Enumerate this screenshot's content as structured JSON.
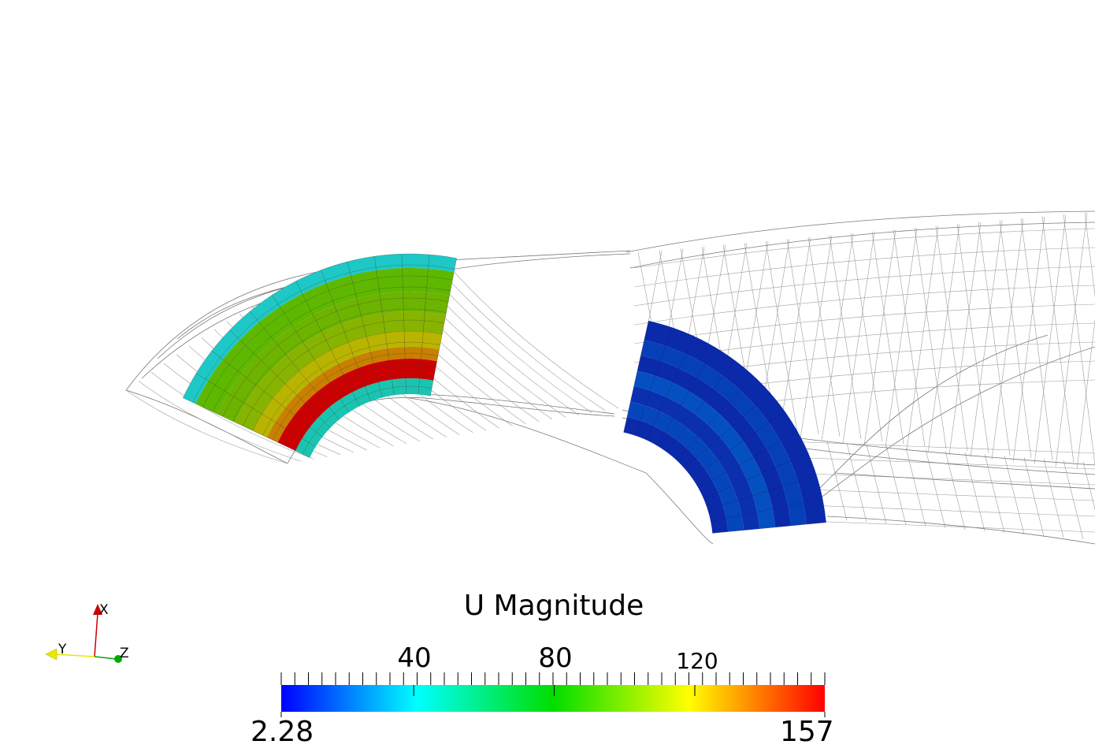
{
  "colorbar": {
    "title": "U Magnitude",
    "min_label": "2.28",
    "max_label": "157",
    "min": 2.28,
    "max": 157,
    "major_ticks": [
      "40",
      "80",
      "120"
    ],
    "minor_tick_count": 40
  },
  "axes": {
    "x": "X",
    "y": "Y",
    "z": "Z"
  },
  "colors": {
    "x_axis": "#cc0000",
    "y_axis": "#e8e800",
    "z_axis": "#00aa00",
    "mesh": "#7a7a7a",
    "cyan": "#1bc4c0",
    "green": "#6cb400",
    "yellow": "#b9b400",
    "red": "#cc0000",
    "blue": "#0a2aaa"
  }
}
